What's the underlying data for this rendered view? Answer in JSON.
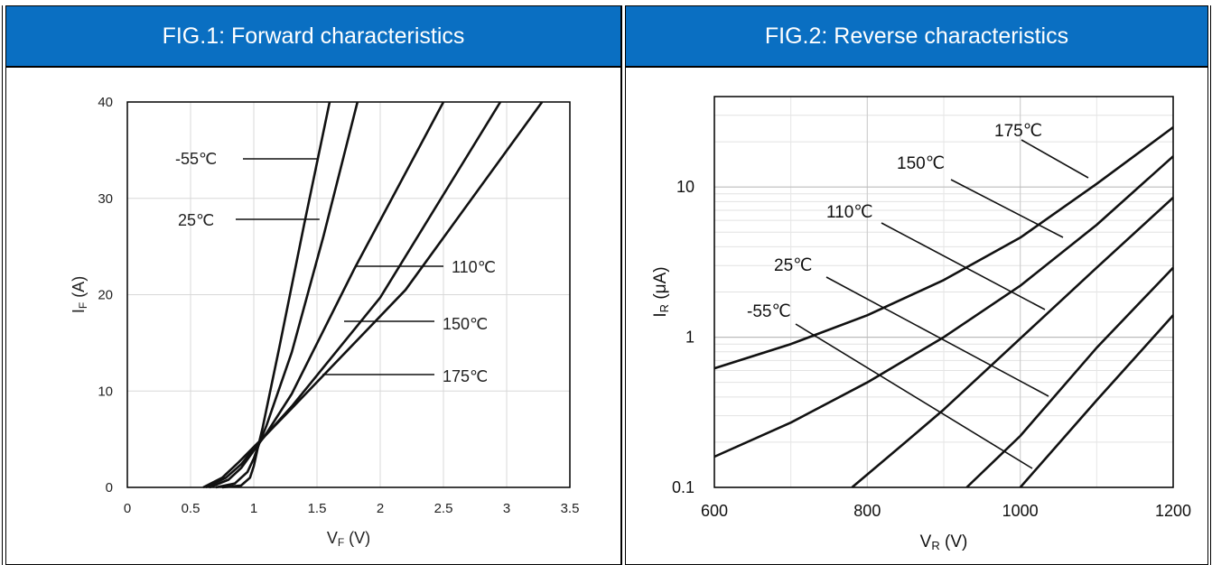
{
  "panels": {
    "left_title": "FIG.1: Forward characteristics",
    "right_title": "FIG.2: Reverse characteristics"
  },
  "chart_data": [
    {
      "type": "line",
      "title": "FIG.1: Forward characteristics",
      "xlabel": "V_F (V)",
      "ylabel": "I_F (A)",
      "xlim": [
        0,
        3.5
      ],
      "ylim": [
        0,
        40
      ],
      "xticks": [
        "0",
        "0.5",
        "1",
        "1.5",
        "2",
        "2.5",
        "3",
        "3.5"
      ],
      "yticks": [
        "0",
        "10",
        "20",
        "30",
        "40"
      ],
      "grid": true,
      "series": [
        {
          "name": "-55℃",
          "x": [
            0.75,
            0.9,
            0.97,
            1.0,
            1.03,
            1.07,
            1.2,
            1.4,
            1.6
          ],
          "y": [
            0,
            0.2,
            1.0,
            2.2,
            4.0,
            6.2,
            14.4,
            27.4,
            40
          ]
        },
        {
          "name": "25℃",
          "x": [
            0.7,
            0.85,
            0.95,
            1.0,
            1.05,
            1.1,
            1.3,
            1.55,
            1.82
          ],
          "y": [
            0,
            0.4,
            1.6,
            3.0,
            4.8,
            6.4,
            14.0,
            26.0,
            40
          ]
        },
        {
          "name": "110℃",
          "x": [
            0.65,
            0.8,
            0.9,
            1.0,
            1.1,
            1.3,
            1.8,
            2.5
          ],
          "y": [
            0,
            0.8,
            2.0,
            3.8,
            5.6,
            9.7,
            22.8,
            40
          ]
        },
        {
          "name": "150℃",
          "x": [
            0.62,
            0.78,
            0.9,
            1.0,
            1.1,
            1.3,
            2.0,
            2.95
          ],
          "y": [
            0,
            1.0,
            2.4,
            4.0,
            5.5,
            8.4,
            19.7,
            40
          ]
        },
        {
          "name": "175℃",
          "x": [
            0.6,
            0.75,
            0.88,
            1.0,
            1.1,
            1.3,
            2.2,
            3.28
          ],
          "y": [
            0,
            1.0,
            2.6,
            4.2,
            5.5,
            8.2,
            20.5,
            40
          ]
        }
      ],
      "annotations": [
        "-55℃",
        "25℃",
        "110℃",
        "150℃",
        "175℃"
      ]
    },
    {
      "type": "line",
      "title": "FIG.2: Reverse characteristics",
      "xlabel": "V_R (V)",
      "ylabel": "I_R (μA)",
      "xlim": [
        600,
        1200
      ],
      "ylim": [
        0.1,
        40
      ],
      "yscale": "log",
      "xticks": [
        "600",
        "800",
        "1000",
        "1200"
      ],
      "yticks": [
        "0.1",
        "1",
        "10"
      ],
      "grid": true,
      "series": [
        {
          "name": "175℃",
          "x": [
            600,
            700,
            800,
            900,
            1000,
            1100,
            1200
          ],
          "y": [
            0.62,
            0.9,
            1.4,
            2.4,
            4.6,
            10.5,
            25
          ]
        },
        {
          "name": "150℃",
          "x": [
            600,
            700,
            800,
            900,
            1000,
            1100,
            1200
          ],
          "y": [
            0.16,
            0.27,
            0.5,
            1.0,
            2.2,
            5.6,
            16
          ]
        },
        {
          "name": "110℃",
          "x": [
            780,
            850,
            900,
            1000,
            1100,
            1200
          ],
          "y": [
            0.1,
            0.2,
            0.33,
            0.98,
            2.9,
            8.5
          ]
        },
        {
          "name": "25℃",
          "x": [
            930,
            1000,
            1100,
            1200
          ],
          "y": [
            0.1,
            0.22,
            0.85,
            2.9
          ]
        },
        {
          "name": "-55℃",
          "x": [
            1000,
            1100,
            1200
          ],
          "y": [
            0.1,
            0.38,
            1.4
          ]
        }
      ],
      "annotations": [
        "175℃",
        "150℃",
        "110℃",
        "25℃",
        "-55℃"
      ]
    }
  ]
}
